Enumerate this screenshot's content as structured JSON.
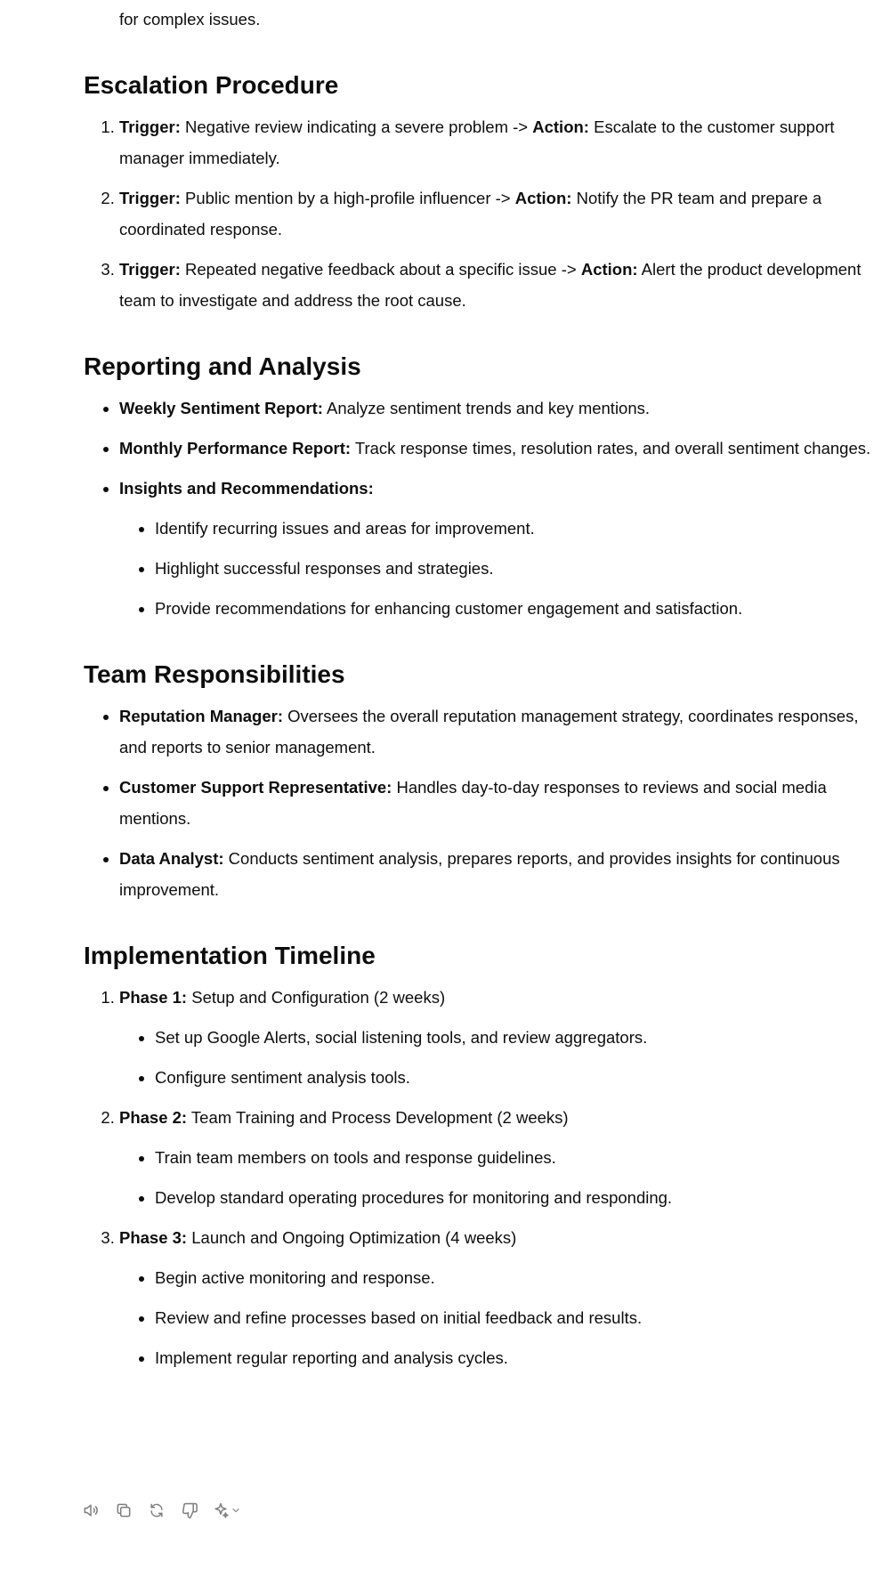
{
  "lead_text": "for complex issues.",
  "escalation": {
    "heading": "Escalation Procedure",
    "items": [
      {
        "trigger_label": "Trigger:",
        "trigger_text": " Negative review indicating a severe problem -> ",
        "action_label": "Action:",
        "action_text": " Escalate to the customer support manager immediately."
      },
      {
        "trigger_label": "Trigger:",
        "trigger_text": " Public mention by a high-profile influencer -> ",
        "action_label": "Action:",
        "action_text": " Notify the PR team and prepare a coordinated response."
      },
      {
        "trigger_label": "Trigger:",
        "trigger_text": " Repeated negative feedback about a specific issue -> ",
        "action_label": "Action:",
        "action_text": " Alert the product development team to investigate and address the root cause."
      }
    ]
  },
  "reporting": {
    "heading": "Reporting and Analysis",
    "items": [
      {
        "label": "Weekly Sentiment Report:",
        "text": " Analyze sentiment trends and key mentions."
      },
      {
        "label": "Monthly Performance Report:",
        "text": " Track response times, resolution rates, and overall sentiment changes."
      },
      {
        "label": "Insights and Recommendations:",
        "text": ""
      }
    ],
    "sub_items": [
      "Identify recurring issues and areas for improvement.",
      "Highlight successful responses and strategies.",
      "Provide recommendations for enhancing customer engagement and satisfaction."
    ]
  },
  "team": {
    "heading": "Team Responsibilities",
    "items": [
      {
        "label": "Reputation Manager:",
        "text": " Oversees the overall reputation management strategy, coordinates responses, and reports to senior management."
      },
      {
        "label": "Customer Support Representative:",
        "text": " Handles day-to-day responses to reviews and social media mentions."
      },
      {
        "label": "Data Analyst:",
        "text": " Conducts sentiment analysis, prepares reports, and provides insights for continuous improvement."
      }
    ]
  },
  "timeline": {
    "heading": "Implementation Timeline",
    "phases": [
      {
        "label": "Phase 1:",
        "text": " Setup and Configuration (2 weeks)",
        "tasks": [
          "Set up Google Alerts, social listening tools, and review aggregators.",
          "Configure sentiment analysis tools."
        ]
      },
      {
        "label": "Phase 2:",
        "text": " Team Training and Process Development (2 weeks)",
        "tasks": [
          "Train team members on tools and response guidelines.",
          "Develop standard operating procedures for monitoring and responding."
        ]
      },
      {
        "label": "Phase 3:",
        "text": " Launch and Ongoing Optimization (4 weeks)",
        "tasks": [
          "Begin active monitoring and response.",
          "Review and refine processes based on initial feedback and results.",
          "Implement regular reporting and analysis cycles."
        ]
      }
    ]
  },
  "toolbar": {
    "icons": [
      "speaker-icon",
      "copy-icon",
      "regenerate-icon",
      "thumbs-down-icon",
      "sparkle-icon",
      "chevron-down-icon"
    ],
    "icon_color": "#7d7d7d"
  }
}
